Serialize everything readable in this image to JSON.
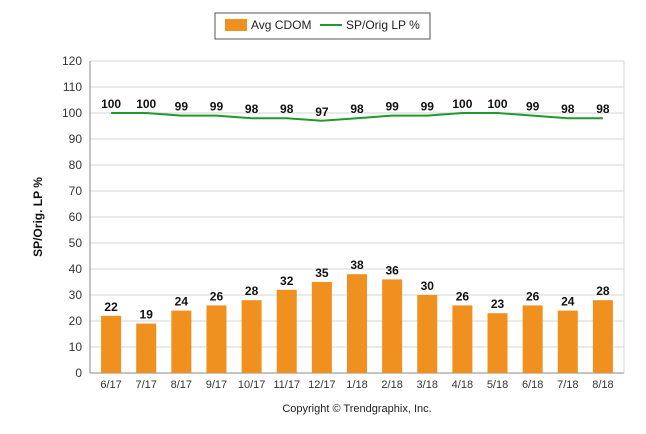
{
  "chart_data": {
    "type": "bar",
    "categories": [
      "6/17",
      "7/17",
      "8/17",
      "9/17",
      "10/17",
      "11/17",
      "12/17",
      "1/18",
      "2/18",
      "3/18",
      "4/18",
      "5/18",
      "6/18",
      "7/18",
      "8/18"
    ],
    "series": [
      {
        "name": "Avg CDOM",
        "type": "bar",
        "color": "#F0901E",
        "values": [
          22,
          19,
          24,
          26,
          28,
          32,
          35,
          38,
          36,
          30,
          26,
          23,
          26,
          24,
          28
        ]
      },
      {
        "name": "SP/Orig LP %",
        "type": "line",
        "color": "#1E9B2A",
        "values": [
          100,
          100,
          99,
          99,
          98,
          98,
          97,
          98,
          99,
          99,
          100,
          100,
          99,
          98,
          98
        ]
      }
    ],
    "ylabel": "SP/Orig. LP %",
    "xlabel": "",
    "ylim": [
      0,
      120
    ],
    "yticks": [
      0,
      10,
      20,
      30,
      40,
      50,
      60,
      70,
      80,
      90,
      100,
      110,
      120
    ],
    "grid": true,
    "legend_position": "top-center"
  },
  "footer": {
    "copyright": "Copyright © Trendgraphix, Inc."
  }
}
